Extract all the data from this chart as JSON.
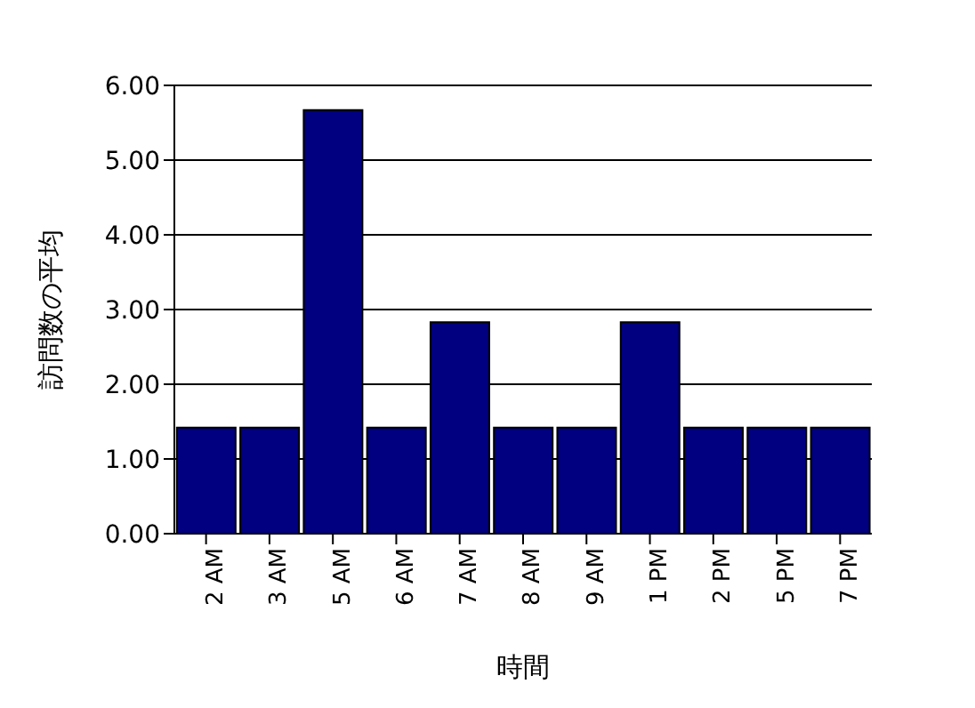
{
  "chart_data": {
    "type": "bar",
    "xlabel": "時間",
    "ylabel": "訪問数の平均",
    "categories": [
      "2 AM",
      "3 AM",
      "5 AM",
      "6 AM",
      "7 AM",
      "8 AM",
      "9 AM",
      "1 PM",
      "2 PM",
      "5 PM",
      "7 PM"
    ],
    "values": [
      1.42,
      1.42,
      5.67,
      1.42,
      2.83,
      1.42,
      1.42,
      2.83,
      1.42,
      1.42,
      1.42
    ],
    "color": "#000080",
    "ylim": [
      0,
      6
    ],
    "yticks": [
      {
        "value": 0,
        "label": "0.00"
      },
      {
        "value": 1,
        "label": "1.00"
      },
      {
        "value": 2,
        "label": "2.00"
      },
      {
        "value": 3,
        "label": "3.00"
      },
      {
        "value": 4,
        "label": "4.00"
      },
      {
        "value": 5,
        "label": "5.00"
      },
      {
        "value": 6,
        "label": "6.00"
      }
    ],
    "grid": "y"
  }
}
